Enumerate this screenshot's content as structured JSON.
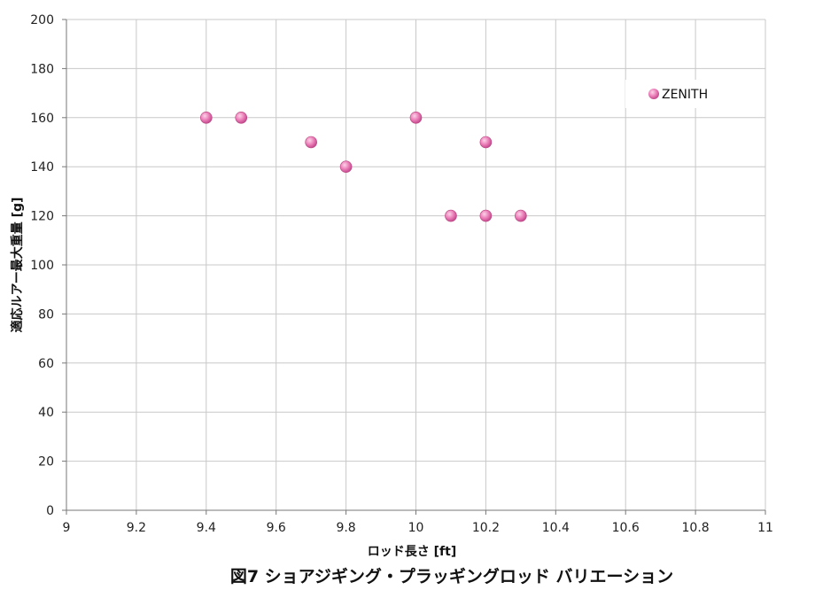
{
  "chart_data": {
    "type": "scatter",
    "xlabel": "ロッド長さ [ft]",
    "ylabel": "適応ルアー最大重量 [g]",
    "xlim": [
      9,
      11
    ],
    "ylim": [
      0,
      200
    ],
    "x_ticks": [
      "9",
      "9.2",
      "9.4",
      "9.6",
      "9.8",
      "10",
      "10.2",
      "10.4",
      "10.6",
      "10.8",
      "11"
    ],
    "y_ticks": [
      "0",
      "20",
      "40",
      "60",
      "80",
      "100",
      "120",
      "140",
      "160",
      "180",
      "200"
    ],
    "grid": true,
    "legend_position": "top-right",
    "series": [
      {
        "name": "ZENITH",
        "color": "#e879b3",
        "points": [
          {
            "x": 9.4,
            "y": 160
          },
          {
            "x": 9.5,
            "y": 160
          },
          {
            "x": 9.7,
            "y": 150
          },
          {
            "x": 9.8,
            "y": 140
          },
          {
            "x": 10.0,
            "y": 160
          },
          {
            "x": 10.1,
            "y": 120
          },
          {
            "x": 10.2,
            "y": 150
          },
          {
            "x": 10.2,
            "y": 120
          },
          {
            "x": 10.3,
            "y": 120
          }
        ]
      }
    ]
  },
  "caption": "図7 ショアジギング・プラッギングロッド バリエーション"
}
